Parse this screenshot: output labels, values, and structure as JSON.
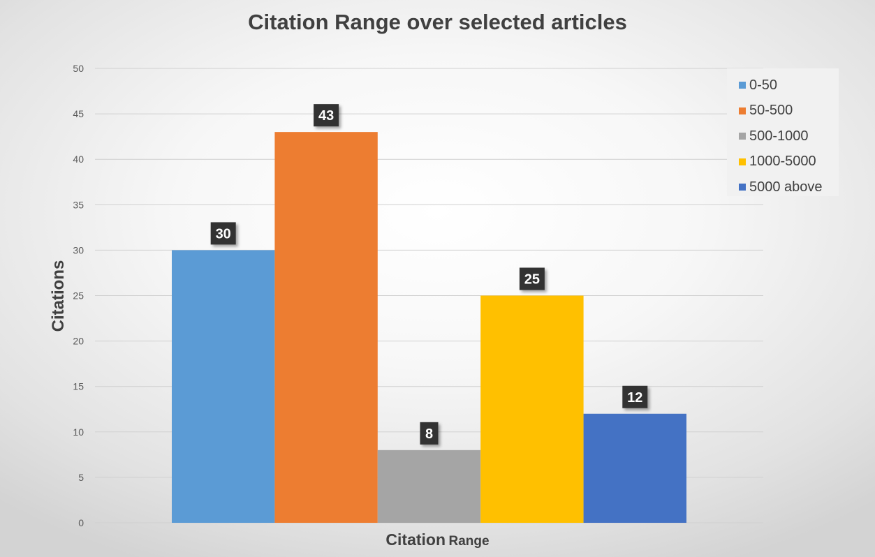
{
  "chart_data": {
    "type": "bar",
    "title": "Citation Range over selected articles",
    "xlabel": "Citation Range",
    "xlabel_parts": [
      "Citation",
      "Range"
    ],
    "ylabel": "Citations",
    "ylim": [
      0,
      50
    ],
    "yticks": [
      0,
      5,
      10,
      15,
      20,
      25,
      30,
      35,
      40,
      45,
      50
    ],
    "grid": true,
    "legend_position": "top-right",
    "series": [
      {
        "name": "0-50",
        "value": 30,
        "color": "#5B9BD5"
      },
      {
        "name": "50-500",
        "value": 43,
        "color": "#ED7D31"
      },
      {
        "name": "500-1000",
        "value": 8,
        "color": "#A5A5A5"
      },
      {
        "name": "1000-5000",
        "value": 25,
        "color": "#FFC000"
      },
      {
        "name": "5000 above",
        "value": 12,
        "color": "#4472C4"
      }
    ]
  }
}
